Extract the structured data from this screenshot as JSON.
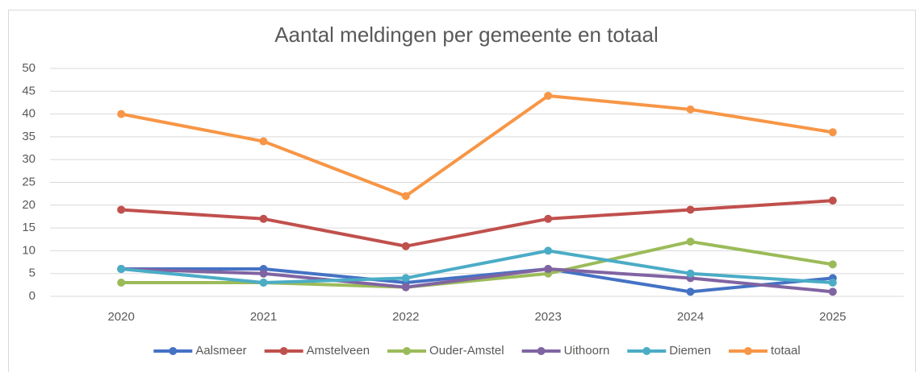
{
  "chart_data": {
    "type": "line",
    "title": "Aantal meldingen per gemeente en totaal",
    "categories": [
      "2020",
      "2021",
      "2022",
      "2023",
      "2024",
      "2025"
    ],
    "series": [
      {
        "name": "Aalsmeer",
        "color": "#4472c4",
        "values": [
          6,
          6,
          3,
          6,
          1,
          4
        ]
      },
      {
        "name": "Amstelveen",
        "color": "#c0504d",
        "values": [
          19,
          17,
          11,
          17,
          19,
          21
        ]
      },
      {
        "name": "Ouder-Amstel",
        "color": "#9bbb59",
        "values": [
          3,
          3,
          2,
          5,
          12,
          7
        ]
      },
      {
        "name": "Uithoorn",
        "color": "#8064a2",
        "values": [
          6,
          5,
          2,
          6,
          4,
          1
        ]
      },
      {
        "name": "Diemen",
        "color": "#4bacc6",
        "values": [
          6,
          3,
          4,
          10,
          5,
          3
        ]
      },
      {
        "name": "totaal",
        "color": "#f79646",
        "values": [
          40,
          34,
          22,
          44,
          41,
          36
        ]
      }
    ],
    "ylim": [
      0,
      50
    ],
    "yticks": [
      0,
      5,
      10,
      15,
      20,
      25,
      30,
      35,
      40,
      45,
      50
    ],
    "grid": true,
    "legend": "bottom"
  }
}
